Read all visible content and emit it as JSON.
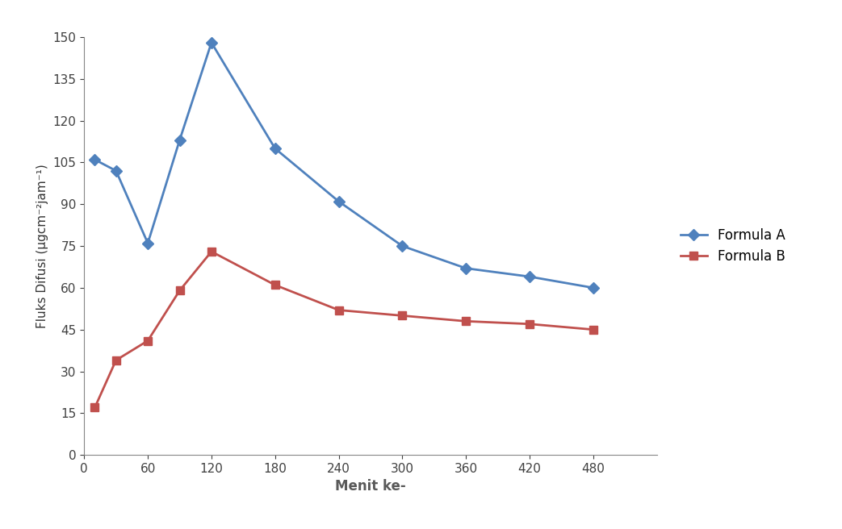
{
  "chart_data": {
    "type": "line",
    "x_label": "Menit ke-",
    "y_label": "Fluks Difusi (μgcm⁻²jam⁻¹)",
    "x": [
      10,
      30,
      60,
      90,
      120,
      180,
      240,
      300,
      360,
      420,
      480
    ],
    "series": [
      {
        "name": "Formula A",
        "color": "#4f81bd",
        "marker": "diamond",
        "values": [
          106,
          102,
          76,
          113,
          148,
          110,
          91,
          75,
          67,
          64,
          60
        ]
      },
      {
        "name": "Formula B",
        "color": "#c0504d",
        "marker": "square",
        "values": [
          17,
          34,
          41,
          59,
          73,
          61,
          52,
          50,
          48,
          47,
          45
        ]
      }
    ],
    "xlim": [
      0,
      540
    ],
    "xticks": [
      0,
      60,
      120,
      180,
      240,
      300,
      360,
      420,
      480
    ],
    "ylim": [
      0,
      150
    ],
    "yticks": [
      0,
      15,
      30,
      45,
      60,
      75,
      90,
      105,
      120,
      135,
      150
    ],
    "grid": false,
    "legend": "right"
  }
}
